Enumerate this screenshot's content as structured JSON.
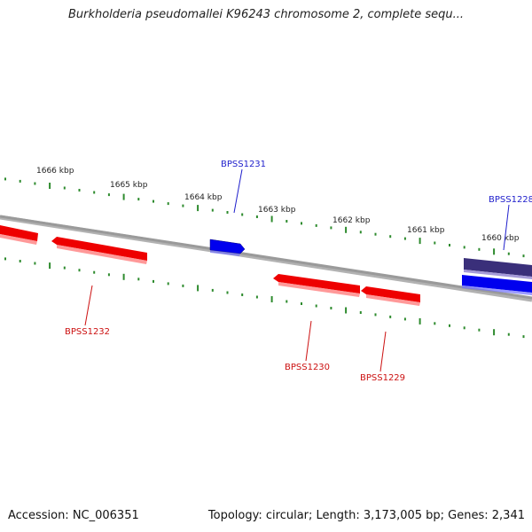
{
  "title": "Burkholderia pseudomallei K96243 chromosome 2, complete sequ...",
  "colors": {
    "backbone": "#8a8a8a",
    "tick": "#2e8b2e",
    "forward_gene": "#0000ee",
    "reverse_gene": "#ee0000",
    "selected_gene": "#3a2f7a",
    "label_forward": "#1f1fcc",
    "label_reverse": "#cc1111",
    "scale_label": "#222222"
  },
  "scale_labels": [
    "1666 kbp",
    "1665 kbp",
    "1664 kbp",
    "1663 kbp",
    "1662 kbp",
    "1661 kbp",
    "1660 kbp"
  ],
  "gene_labels": {
    "BPSS1231": "BPSS1231",
    "BPSS1228": "BPSS1228",
    "BPSS1232": "BPSS1232",
    "BPSS1230": "BPSS1230",
    "BPSS1229": "BPSS1229"
  },
  "footer": {
    "accession": "Accession: NC_006351",
    "stats": "Topology: circular; Length: 3,173,005 bp; Genes: 2,341"
  }
}
